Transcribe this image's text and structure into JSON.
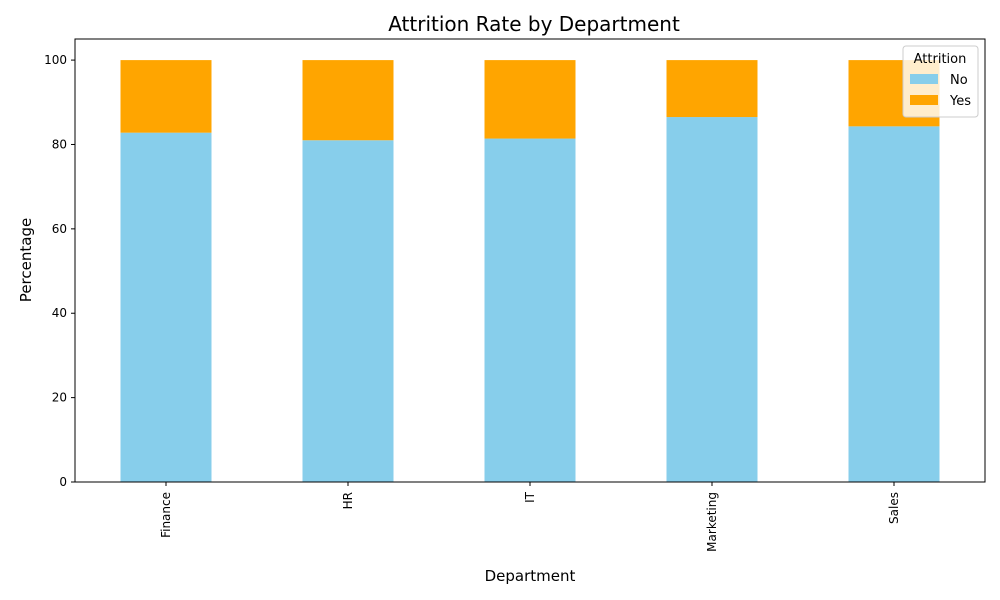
{
  "chart_data": {
    "type": "bar",
    "stacked": true,
    "title": "Attrition Rate by Department",
    "xlabel": "Department",
    "ylabel": "Percentage",
    "categories": [
      "Finance",
      "HR",
      "IT",
      "Marketing",
      "Sales"
    ],
    "series": [
      {
        "name": "No",
        "color": "#87ceeb",
        "values": [
          82.8,
          81.0,
          81.4,
          86.5,
          84.3
        ]
      },
      {
        "name": "Yes",
        "color": "#ffa500",
        "values": [
          17.2,
          19.0,
          18.6,
          13.5,
          15.7
        ]
      }
    ],
    "ylim": [
      0,
      105
    ],
    "yticks": [
      0,
      20,
      40,
      60,
      80,
      100
    ],
    "grid": false,
    "legend": {
      "title": "Attrition",
      "position": "top-right"
    }
  }
}
